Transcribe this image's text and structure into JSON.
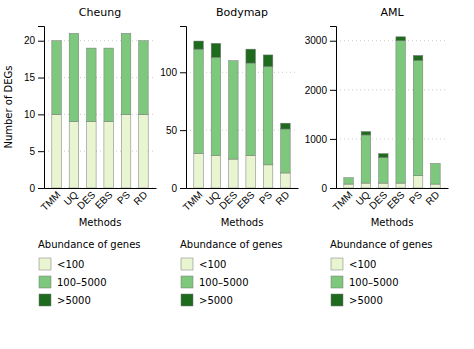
{
  "chart_data": [
    {
      "type": "bar",
      "title": "Cheung",
      "x_label": "Methods",
      "y_label": "Number of DEGs",
      "legend_title": "Abundance of genes",
      "categories": [
        "TMM",
        "UQ",
        "DES",
        "EBS",
        "PS",
        "RD"
      ],
      "series": [
        {
          "name": "<100",
          "color": "#e8f5d0",
          "values": [
            10,
            9,
            9,
            9,
            10,
            10
          ]
        },
        {
          "name": "100–5000",
          "color": "#7dc87d",
          "values": [
            10,
            12,
            10,
            10,
            11,
            10
          ]
        },
        {
          "name": ">5000",
          "color": "#1e6b1e",
          "values": [
            0,
            0,
            0,
            0,
            0,
            0
          ]
        }
      ],
      "ylim": [
        0,
        22
      ],
      "yticks": [
        0,
        5,
        10,
        15,
        20
      ],
      "stacked": true,
      "grid": true,
      "legend": "bottom"
    },
    {
      "type": "bar",
      "title": "Bodymap",
      "x_label": "Methods",
      "legend_title": "Abundance of genes",
      "categories": [
        "TMM",
        "UQ",
        "DES",
        "EBS",
        "PS",
        "RD"
      ],
      "series": [
        {
          "name": "<100",
          "color": "#e8f5d0",
          "values": [
            30,
            28,
            25,
            28,
            20,
            13
          ]
        },
        {
          "name": "100–5000",
          "color": "#7dc87d",
          "values": [
            90,
            85,
            85,
            80,
            85,
            38
          ]
        },
        {
          "name": ">5000",
          "color": "#1e6b1e",
          "values": [
            7,
            12,
            0,
            12,
            10,
            5
          ]
        }
      ],
      "ylim": [
        0,
        140
      ],
      "yticks": [
        0,
        50,
        100
      ],
      "stacked": true,
      "grid": true,
      "legend": "bottom"
    },
    {
      "type": "bar",
      "title": "AML",
      "x_label": "Methods",
      "legend_title": "Abundance of genes",
      "categories": [
        "TMM",
        "UQ",
        "DES",
        "EBS",
        "PS",
        "RD"
      ],
      "series": [
        {
          "name": "<100",
          "color": "#e8f5d0",
          "values": [
            80,
            100,
            100,
            100,
            250,
            80
          ]
        },
        {
          "name": "100–5000",
          "color": "#7dc87d",
          "values": [
            130,
            980,
            520,
            2900,
            2350,
            420
          ]
        },
        {
          "name": ">5000",
          "color": "#1e6b1e",
          "values": [
            0,
            70,
            80,
            80,
            100,
            0
          ]
        }
      ],
      "ylim": [
        0,
        3300
      ],
      "yticks": [
        0,
        1000,
        2000,
        3000
      ],
      "stacked": true,
      "grid": true,
      "legend": "bottom"
    }
  ]
}
